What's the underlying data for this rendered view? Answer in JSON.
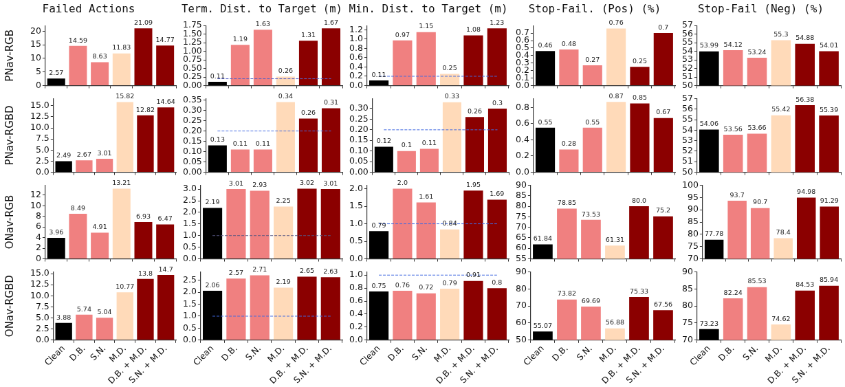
{
  "chart_data": [
    {
      "type": "bar",
      "title": "Failed Actions",
      "ylabel": "PNav-RGB",
      "categories": [
        null,
        null,
        null,
        null,
        null,
        null
      ],
      "values": [
        2.57,
        14.59,
        8.63,
        11.83,
        21.09,
        14.77
      ],
      "colors": [
        "#000000",
        "#f08080",
        "#f08080",
        "#ffdab9",
        "#8b0000",
        "#8b0000"
      ],
      "ylim": [
        0,
        22.1
      ],
      "yticks": [
        0,
        5,
        10,
        15,
        20
      ],
      "data_labels": true,
      "tick_labels": "y"
    },
    {
      "type": "bar",
      "title": "Term. Dist. to Target (m)",
      "categories": [
        null,
        null,
        null,
        null,
        null,
        null
      ],
      "values": [
        0.11,
        1.19,
        1.63,
        0.26,
        1.31,
        1.67
      ],
      "colors": [
        "#000000",
        "#f08080",
        "#f08080",
        "#ffdab9",
        "#8b0000",
        "#8b0000"
      ],
      "ylim": [
        0,
        1.75
      ],
      "yticks": [
        {
          "value": 0,
          "label": "0.00"
        },
        {
          "value": 0.25,
          "label": "0.25"
        },
        {
          "value": 0.5,
          "label": "0.50"
        },
        {
          "value": 0.75,
          "label": "0.75"
        },
        {
          "value": 1,
          "label": "1.00"
        },
        {
          "value": 1.25,
          "label": "1.25"
        },
        {
          "value": 1.5,
          "label": "1.50"
        },
        {
          "value": 1.75,
          "label": "1.75"
        }
      ],
      "data_labels": true,
      "tick_labels": "y",
      "ref_lines": [
        {
          "axis": "y",
          "value": 0.2,
          "color": "#5560c8",
          "line_style": "dashed"
        }
      ]
    },
    {
      "type": "bar",
      "title": "Min. Dist. to Target (m)",
      "categories": [
        null,
        null,
        null,
        null,
        null,
        null
      ],
      "values": [
        0.11,
        0.97,
        1.15,
        0.25,
        1.08,
        1.23
      ],
      "colors": [
        "#000000",
        "#f08080",
        "#f08080",
        "#ffdab9",
        "#8b0000",
        "#8b0000"
      ],
      "ylim": [
        0,
        1.29
      ],
      "yticks": [
        {
          "value": 0,
          "label": "0.0"
        },
        {
          "value": 0.2,
          "label": "0.2"
        },
        {
          "value": 0.4,
          "label": "0.4"
        },
        {
          "value": 0.6,
          "label": "0.6"
        },
        {
          "value": 0.8,
          "label": "0.8"
        },
        {
          "value": 1,
          "label": "1.0"
        },
        {
          "value": 1.2,
          "label": "1.2"
        }
      ],
      "data_labels": true,
      "tick_labels": "y",
      "ref_lines": [
        {
          "axis": "y",
          "value": 0.2,
          "color": "#4169e1",
          "line_style": "dashed"
        }
      ]
    },
    {
      "type": "bar",
      "title": "Stop-Fail. (Pos) (%)",
      "categories": [
        null,
        null,
        null,
        null,
        null,
        null
      ],
      "values": [
        0.46,
        0.48,
        0.27,
        0.76,
        0.25,
        0.7
      ],
      "colors": [
        "#000000",
        "#f08080",
        "#f08080",
        "#ffdab9",
        "#8b0000",
        "#8b0000"
      ],
      "ylim": [
        0,
        0.8
      ],
      "yticks": [
        {
          "value": 0,
          "label": "0.0"
        },
        0.1,
        0.2,
        0.3,
        0.4,
        0.5,
        0.6,
        0.7
      ],
      "data_labels": true,
      "tick_labels": "y"
    },
    {
      "type": "bar",
      "title": "Stop-Fail (Neg) (%)",
      "categories": [
        null,
        null,
        null,
        null,
        null,
        null
      ],
      "values": [
        53.99,
        54.12,
        53.24,
        55.3,
        54.88,
        54.01
      ],
      "colors": [
        "#000000",
        "#f08080",
        "#f08080",
        "#ffdab9",
        "#8b0000",
        "#8b0000"
      ],
      "ylim": [
        50,
        57
      ],
      "yticks": [
        50,
        51,
        52,
        53,
        54,
        55,
        56,
        57
      ],
      "data_labels": true,
      "tick_labels": "y"
    },
    {
      "type": "bar",
      "ylabel": "PNav-RGBD",
      "categories": [
        null,
        null,
        null,
        null,
        null,
        null
      ],
      "values": [
        2.49,
        2.67,
        3.01,
        15.82,
        12.82,
        14.64
      ],
      "colors": [
        "#000000",
        "#f08080",
        "#f08080",
        "#ffdab9",
        "#8b0000",
        "#8b0000"
      ],
      "ylim": [
        0,
        16.6
      ],
      "yticks": [
        {
          "value": 0,
          "label": "0.0"
        },
        2.5,
        {
          "value": 5,
          "label": "5.0"
        },
        7.5,
        {
          "value": 10,
          "label": "10.0"
        },
        12.5,
        {
          "value": 15,
          "label": "15.0"
        }
      ],
      "data_labels": true,
      "tick_labels": "y"
    },
    {
      "type": "bar",
      "categories": [
        null,
        null,
        null,
        null,
        null,
        null
      ],
      "values": [
        0.13,
        0.11,
        0.11,
        0.34,
        0.26,
        0.31
      ],
      "colors": [
        "#000000",
        "#f08080",
        "#f08080",
        "#ffdab9",
        "#8b0000",
        "#8b0000"
      ],
      "ylim": [
        0,
        0.357
      ],
      "yticks": [
        {
          "value": 0,
          "label": "0.00"
        },
        0.05,
        {
          "value": 0.1,
          "label": "0.10"
        },
        0.15,
        {
          "value": 0.2,
          "label": "0.20"
        },
        0.25,
        {
          "value": 0.3,
          "label": "0.30"
        },
        0.35
      ],
      "data_labels": true,
      "tick_labels": "y",
      "ref_lines": [
        {
          "axis": "y",
          "value": 0.2,
          "color": "#4169e1",
          "line_style": "dashed"
        }
      ]
    },
    {
      "type": "bar",
      "categories": [
        null,
        null,
        null,
        null,
        null,
        null
      ],
      "values": [
        0.12,
        0.1,
        0.11,
        0.33,
        0.26,
        0.3
      ],
      "colors": [
        "#000000",
        "#f08080",
        "#f08080",
        "#ffdab9",
        "#8b0000",
        "#8b0000"
      ],
      "ylim": [
        0,
        0.347
      ],
      "yticks": [
        {
          "value": 0,
          "label": "0.00"
        },
        0.05,
        {
          "value": 0.1,
          "label": "0.10"
        },
        0.15,
        {
          "value": 0.2,
          "label": "0.20"
        },
        0.25,
        {
          "value": 0.3,
          "label": "0.30"
        }
      ],
      "data_labels": true,
      "tick_labels": "y",
      "ref_lines": [
        {
          "axis": "y",
          "value": 0.2,
          "color": "#4169e1",
          "line_style": "dashed"
        }
      ]
    },
    {
      "type": "bar",
      "categories": [
        null,
        null,
        null,
        null,
        null,
        null
      ],
      "values": [
        0.55,
        0.28,
        0.55,
        0.87,
        0.85,
        0.67
      ],
      "colors": [
        "#000000",
        "#f08080",
        "#f08080",
        "#ffdab9",
        "#8b0000",
        "#8b0000"
      ],
      "ylim": [
        0,
        0.91
      ],
      "yticks": [
        {
          "value": 0,
          "label": "0.0"
        },
        0.2,
        0.4,
        0.6,
        0.8
      ],
      "data_labels": true,
      "tick_labels": "y"
    },
    {
      "type": "bar",
      "categories": [
        null,
        null,
        null,
        null,
        null,
        null
      ],
      "values": [
        54.06,
        53.56,
        53.66,
        55.42,
        56.38,
        55.39
      ],
      "colors": [
        "#000000",
        "#f08080",
        "#f08080",
        "#ffdab9",
        "#8b0000",
        "#8b0000"
      ],
      "ylim": [
        50,
        57
      ],
      "yticks": [
        50,
        51,
        52,
        53,
        54,
        55,
        56,
        57
      ],
      "data_labels": true,
      "tick_labels": "y"
    },
    {
      "type": "bar",
      "ylabel": "ONav-RGB",
      "categories": [
        null,
        null,
        null,
        null,
        null,
        null
      ],
      "values": [
        3.96,
        8.49,
        4.91,
        13.21,
        6.93,
        6.47
      ],
      "colors": [
        "#000000",
        "#f08080",
        "#f08080",
        "#ffdab9",
        "#8b0000",
        "#8b0000"
      ],
      "ylim": [
        0,
        13.87
      ],
      "yticks": [
        0,
        2,
        4,
        6,
        8,
        10,
        12
      ],
      "data_labels": true,
      "tick_labels": "y"
    },
    {
      "type": "bar",
      "categories": [
        null,
        null,
        null,
        null,
        null,
        null
      ],
      "values": [
        2.19,
        3.01,
        2.93,
        2.25,
        3.02,
        3.01
      ],
      "colors": [
        "#000000",
        "#f08080",
        "#f08080",
        "#ffdab9",
        "#8b0000",
        "#8b0000"
      ],
      "ylim": [
        0,
        3.17
      ],
      "yticks": [
        {
          "value": 0,
          "label": "0.0"
        },
        0.5,
        {
          "value": 1,
          "label": "1.0"
        },
        1.5,
        {
          "value": 2,
          "label": "2.0"
        },
        2.5,
        {
          "value": 3,
          "label": "3.0"
        }
      ],
      "data_labels": true,
      "tick_labels": "y",
      "ref_lines": [
        {
          "axis": "y",
          "value": 1,
          "color": "#555580",
          "line_style": "dashed"
        }
      ]
    },
    {
      "type": "bar",
      "categories": [
        null,
        null,
        null,
        null,
        null,
        null
      ],
      "values": [
        0.79,
        2,
        1.61,
        0.84,
        1.95,
        1.69
      ],
      "value_labels": [
        "0.79",
        "2.0",
        "1.61",
        "0.84",
        "1.95",
        "1.69"
      ],
      "colors": [
        "#000000",
        "#f08080",
        "#f08080",
        "#ffdab9",
        "#8b0000",
        "#8b0000"
      ],
      "ylim": [
        0,
        2.1
      ],
      "yticks": [
        {
          "value": 0,
          "label": "0.0"
        },
        0.5,
        {
          "value": 1,
          "label": "1.0"
        },
        1.5,
        {
          "value": 2,
          "label": "2.0"
        }
      ],
      "tick_labels": "y",
      "ref_lines": [
        {
          "axis": "y",
          "value": 1,
          "color": "#4169e1",
          "line_style": "dashed"
        }
      ]
    },
    {
      "type": "bar",
      "categories": [
        null,
        null,
        null,
        null,
        null,
        null
      ],
      "values": [
        61.84,
        78.85,
        73.53,
        61.31,
        80,
        75.2
      ],
      "value_labels": [
        "61.84",
        "78.85",
        "73.53",
        "61.31",
        "80.0",
        "75.2"
      ],
      "colors": [
        "#000000",
        "#f08080",
        "#f08080",
        "#ffdab9",
        "#8b0000",
        "#8b0000"
      ],
      "ylim": [
        55,
        90
      ],
      "yticks": [
        55,
        60,
        65,
        70,
        75,
        80,
        85,
        90
      ],
      "tick_labels": "y"
    },
    {
      "type": "bar",
      "categories": [
        null,
        null,
        null,
        null,
        null,
        null
      ],
      "values": [
        77.78,
        93.7,
        90.7,
        78.4,
        94.98,
        91.29
      ],
      "colors": [
        "#000000",
        "#f08080",
        "#f08080",
        "#ffdab9",
        "#8b0000",
        "#8b0000"
      ],
      "ylim": [
        70,
        100
      ],
      "yticks": [
        70,
        75,
        80,
        85,
        90,
        95,
        100
      ],
      "data_labels": true,
      "tick_labels": "y"
    },
    {
      "type": "bar",
      "ylabel": "ONav-RGBD",
      "categories": [
        "Clean",
        "D.B.",
        "S.N.",
        "M.D.",
        "D.B. + M.D.",
        "S.N. + M.D."
      ],
      "values": [
        3.88,
        5.74,
        5.04,
        10.77,
        13.8,
        14.7
      ],
      "colors": [
        "#000000",
        "#f08080",
        "#f08080",
        "#ffdab9",
        "#8b0000",
        "#8b0000"
      ],
      "ylim": [
        0,
        15.4
      ],
      "yticks": [
        {
          "value": 0,
          "label": "0.0"
        },
        2.5,
        {
          "value": 5,
          "label": "5.0"
        },
        7.5,
        {
          "value": 10,
          "label": "10.0"
        },
        12.5,
        {
          "value": 15,
          "label": "15.0"
        }
      ],
      "data_labels": true
    },
    {
      "type": "bar",
      "categories": [
        "Clean",
        "D.B.",
        "S.N.",
        "M.D.",
        "D.B. + M.D.",
        "S.N. + M.D."
      ],
      "values": [
        2.06,
        2.57,
        2.71,
        2.19,
        2.65,
        2.63
      ],
      "colors": [
        "#000000",
        "#f08080",
        "#f08080",
        "#ffdab9",
        "#8b0000",
        "#8b0000"
      ],
      "ylim": [
        0,
        2.85
      ],
      "yticks": [
        {
          "value": 0,
          "label": "0.0"
        },
        0.5,
        {
          "value": 1,
          "label": "1.0"
        },
        1.5,
        {
          "value": 2,
          "label": "2.0"
        },
        2.5
      ],
      "data_labels": true,
      "ref_lines": [
        {
          "axis": "y",
          "value": 1,
          "color": "#4169e1",
          "line_style": "dashed"
        }
      ]
    },
    {
      "type": "bar",
      "categories": [
        "Clean",
        "D.B.",
        "S.N.",
        "M.D.",
        "D.B. + M.D.",
        "S.N. + M.D."
      ],
      "values": [
        0.75,
        0.76,
        0.72,
        0.79,
        0.91,
        0.8
      ],
      "colors": [
        "#000000",
        "#f08080",
        "#f08080",
        "#ffdab9",
        "#8b0000",
        "#8b0000"
      ],
      "ylim": [
        0,
        1.05
      ],
      "yticks": [
        {
          "value": 0,
          "label": "0.0"
        },
        0.2,
        0.4,
        0.6,
        0.8,
        {
          "value": 1,
          "label": "1.0"
        }
      ],
      "data_labels": true,
      "ref_lines": [
        {
          "axis": "y",
          "value": 1,
          "color": "#4169e1",
          "line_style": "dashed"
        }
      ]
    },
    {
      "type": "bar",
      "categories": [
        "Clean",
        "D.B.",
        "S.N.",
        "M.D.",
        "D.B. + M.D.",
        "S.N. + M.D."
      ],
      "values": [
        55.07,
        73.82,
        69.69,
        56.88,
        75.33,
        67.56
      ],
      "colors": [
        "#000000",
        "#f08080",
        "#f08080",
        "#ffdab9",
        "#8b0000",
        "#8b0000"
      ],
      "ylim": [
        50,
        90
      ],
      "yticks": [
        50,
        60,
        70,
        80,
        90
      ],
      "data_labels": true
    },
    {
      "type": "bar",
      "categories": [
        "Clean",
        "D.B.",
        "S.N.",
        "M.D.",
        "D.B. + M.D.",
        "S.N. + M.D."
      ],
      "values": [
        73.23,
        82.24,
        85.53,
        74.62,
        84.53,
        85.94
      ],
      "colors": [
        "#000000",
        "#f08080",
        "#f08080",
        "#ffdab9",
        "#8b0000",
        "#8b0000"
      ],
      "ylim": [
        70,
        90
      ],
      "yticks": [
        70,
        75,
        80,
        85,
        90
      ],
      "data_labels": true
    }
  ]
}
